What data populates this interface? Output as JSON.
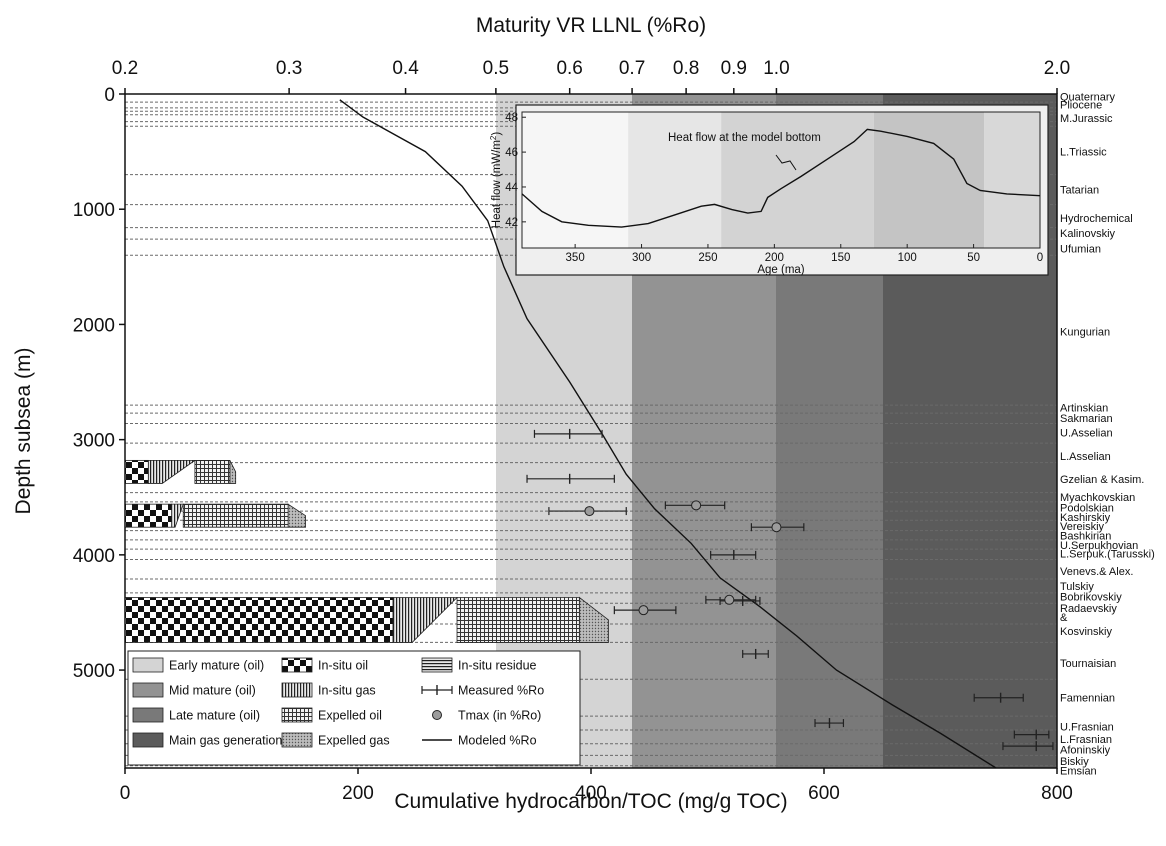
{
  "chart_data": [
    {
      "type": "line",
      "x_axis_bottom": {
        "label": "Cumulative hydrocarbon/TOC (mg/g TOC)",
        "ticks": [
          "0",
          "200",
          "400",
          "600",
          "800"
        ],
        "range": [
          0,
          800
        ]
      },
      "x_axis_top": {
        "label": "Maturity VR LLNL (%Ro)",
        "scale": "log",
        "ticks": [
          "0.2",
          "0.3",
          "0.4",
          "0.5",
          "0.6",
          "0.7",
          "0.8",
          "0.9",
          "1.0",
          "2.0"
        ],
        "range": [
          0.2,
          2.0
        ]
      },
      "y_axis": {
        "label": "Depth subsea (m)",
        "ticks": [
          "0",
          "1000",
          "2000",
          "3000",
          "4000",
          "5000"
        ],
        "range": [
          0,
          5850
        ],
        "reversed": true
      },
      "maturity_zones": [
        {
          "name": "Early mature (oil)",
          "ro_from": 0.5,
          "ro_to": 0.7,
          "color": "#d4d4d4"
        },
        {
          "name": "Mid mature (oil)",
          "ro_from": 0.7,
          "ro_to": 1.0,
          "color": "#939393"
        },
        {
          "name": "Late mature (oil)",
          "ro_from": 1.0,
          "ro_to": 1.3,
          "color": "#797979"
        },
        {
          "name": "Main gas generation",
          "ro_from": 1.3,
          "ro_to": 2.0,
          "color": "#5b5b5b"
        }
      ],
      "formations": [
        {
          "name": "Quaternary",
          "depth": 20
        },
        {
          "name": "Pliocene",
          "depth": 90
        },
        {
          "name": "M.Jurassic",
          "depth": 210
        },
        {
          "name": "L.Triassic",
          "depth": 500
        },
        {
          "name": "Tatarian",
          "depth": 830
        },
        {
          "name": "Hydrochemical",
          "depth": 1075
        },
        {
          "name": "Kalinovskiy",
          "depth": 1205
        },
        {
          "name": "Ufumian",
          "depth": 1340
        },
        {
          "name": "Kungurian",
          "depth": 2060
        },
        {
          "name": "Artinskian",
          "depth": 2720
        },
        {
          "name": "Sakmarian",
          "depth": 2810
        },
        {
          "name": "U.Asselian",
          "depth": 2940
        },
        {
          "name": "L.Asselian",
          "depth": 3140
        },
        {
          "name": "Gzelian & Kasim.",
          "depth": 3340
        },
        {
          "name": "Myachkovskian",
          "depth": 3500
        },
        {
          "name": "Podolskian",
          "depth": 3590
        },
        {
          "name": "Kashirskiy",
          "depth": 3670
        },
        {
          "name": "Vereiskiy",
          "depth": 3750
        },
        {
          "name": "Bashkirian",
          "depth": 3830
        },
        {
          "name": "U.Serpukhovian",
          "depth": 3915
        },
        {
          "name": "L.Serpuk.(Tarusski)",
          "depth": 3990
        },
        {
          "name": "Venevs.& Alex.",
          "depth": 4140
        },
        {
          "name": "Tulskiy",
          "depth": 4270
        },
        {
          "name": "Bobrikovskiy",
          "depth": 4360
        },
        {
          "name": "Radaevskiy",
          "depth": 4460
        },
        {
          "name": "&",
          "depth": 4540
        },
        {
          "name": "Kosvinskiy",
          "depth": 4660
        },
        {
          "name": "Tournaisian",
          "depth": 4940
        },
        {
          "name": "Famennian",
          "depth": 5240
        },
        {
          "name": "U.Frasnian",
          "depth": 5490
        },
        {
          "name": "L.Frasnian",
          "depth": 5600
        },
        {
          "name": "Afoninskiy",
          "depth": 5690
        },
        {
          "name": "Biskiy",
          "depth": 5790
        },
        {
          "name": "Emsian",
          "depth": 5870
        }
      ],
      "series": [
        {
          "name": "Modeled %Ro",
          "points": [
            {
              "ro": 0.34,
              "depth": 50
            },
            {
              "ro": 0.36,
              "depth": 200
            },
            {
              "ro": 0.42,
              "depth": 500
            },
            {
              "ro": 0.46,
              "depth": 800
            },
            {
              "ro": 0.49,
              "depth": 1100
            },
            {
              "ro": 0.51,
              "depth": 1500
            },
            {
              "ro": 0.54,
              "depth": 1950
            },
            {
              "ro": 0.6,
              "depth": 2500
            },
            {
              "ro": 0.65,
              "depth": 2950
            },
            {
              "ro": 0.69,
              "depth": 3300
            },
            {
              "ro": 0.74,
              "depth": 3600
            },
            {
              "ro": 0.81,
              "depth": 3900
            },
            {
              "ro": 0.87,
              "depth": 4200
            },
            {
              "ro": 0.96,
              "depth": 4450
            },
            {
              "ro": 1.05,
              "depth": 4700
            },
            {
              "ro": 1.16,
              "depth": 5000
            },
            {
              "ro": 1.33,
              "depth": 5300
            },
            {
              "ro": 1.5,
              "depth": 5550
            },
            {
              "ro": 1.72,
              "depth": 5850
            }
          ]
        },
        {
          "name": "Measured %Ro",
          "points": [
            {
              "ro": 0.6,
              "depth": 2950,
              "ro_low": 0.55,
              "ro_high": 0.65
            },
            {
              "ro": 0.6,
              "depth": 3340,
              "ro_low": 0.54,
              "ro_high": 0.67
            },
            {
              "ro": 0.9,
              "depth": 4000,
              "ro_low": 0.85,
              "ro_high": 0.95
            },
            {
              "ro": 0.92,
              "depth": 4400,
              "ro_low": 0.87,
              "ro_high": 0.96
            },
            {
              "ro": 0.95,
              "depth": 4860,
              "ro_low": 0.92,
              "ro_high": 0.98
            },
            {
              "ro": 1.74,
              "depth": 5240,
              "ro_low": 1.63,
              "ro_high": 1.84
            },
            {
              "ro": 1.14,
              "depth": 5460,
              "ro_low": 1.1,
              "ro_high": 1.18
            },
            {
              "ro": 1.9,
              "depth": 5560,
              "ro_low": 1.8,
              "ro_high": 1.96
            },
            {
              "ro": 1.9,
              "depth": 5660,
              "ro_low": 1.75,
              "ro_high": 1.98
            }
          ]
        },
        {
          "name": "Tmax (in %Ro)",
          "points": [
            {
              "ro": 0.82,
              "depth": 3570,
              "ro_low": 0.76,
              "ro_high": 0.88
            },
            {
              "ro": 0.63,
              "depth": 3620,
              "ro_low": 0.57,
              "ro_high": 0.69
            },
            {
              "ro": 1.0,
              "depth": 3760,
              "ro_low": 0.94,
              "ro_high": 1.07
            },
            {
              "ro": 0.89,
              "depth": 4390,
              "ro_low": 0.84,
              "ro_high": 0.95
            },
            {
              "ro": 0.72,
              "depth": 4480,
              "ro_low": 0.67,
              "ro_high": 0.78
            }
          ]
        }
      ],
      "hydrocarbon_intervals": [
        {
          "formation": "Gzelian & Kasim.",
          "depth_top": 3180,
          "depth_bottom": 3380,
          "insitu_oil": 20,
          "insitu_gas": 60,
          "expelled_oil": 90,
          "expelled_gas": 95
        },
        {
          "formation": "Kashirskiy - Vereiskiy",
          "depth_top": 3560,
          "depth_bottom": 3760,
          "insitu_oil": 40,
          "insitu_gas": 50,
          "expelled_oil": 140,
          "expelled_gas": 155
        },
        {
          "formation": "Radaevskiy & Kosvinskiy",
          "depth_top": 4370,
          "depth_bottom": 4760,
          "insitu_oil": 230,
          "insitu_gas": 285,
          "expelled_oil": 390,
          "expelled_gas": 415
        }
      ],
      "legend": {
        "position": "bottom-left",
        "entries": [
          {
            "label": "Early mature (oil)",
            "swatch": "zone-early"
          },
          {
            "label": "In-situ oil",
            "swatch": "pattern-checker"
          },
          {
            "label": "In-situ residue",
            "swatch": "pattern-hlines"
          },
          {
            "label": "Mid mature (oil)",
            "swatch": "zone-mid"
          },
          {
            "label": "In-situ gas",
            "swatch": "pattern-vlines"
          },
          {
            "label": "Measured %Ro",
            "swatch": "errorbar-cross"
          },
          {
            "label": "Late mature (oil)",
            "swatch": "zone-late"
          },
          {
            "label": "Expelled oil",
            "swatch": "pattern-grid"
          },
          {
            "label": "Tmax (in %Ro)",
            "swatch": "circle-marker"
          },
          {
            "label": "Main gas generation",
            "swatch": "zone-gas"
          },
          {
            "label": "Expelled gas",
            "swatch": "pattern-dots"
          },
          {
            "label": "Modeled %Ro",
            "swatch": "line"
          }
        ]
      },
      "grid": false
    },
    {
      "type": "line",
      "title": "Heat flow at the model bottom",
      "xlabel": "Age (ma)",
      "ylabel": "Heat flow (mW/m²)",
      "ylabel_text": "Heat flow (mW/m",
      "ylabel_sup": "2",
      "ylabel_close": ")",
      "x_ticks": [
        "350",
        "300",
        "250",
        "200",
        "150",
        "100",
        "50",
        "0"
      ],
      "y_ticks": [
        "42",
        "44",
        "46",
        "48"
      ],
      "xlim": [
        390,
        0
      ],
      "ylim": [
        40.5,
        48.3
      ],
      "series": [
        {
          "points": [
            {
              "age": 390,
              "hf": 43.6
            },
            {
              "age": 375,
              "hf": 42.6
            },
            {
              "age": 360,
              "hf": 42.0
            },
            {
              "age": 340,
              "hf": 41.8
            },
            {
              "age": 315,
              "hf": 41.7
            },
            {
              "age": 295,
              "hf": 41.9
            },
            {
              "age": 275,
              "hf": 42.4
            },
            {
              "age": 255,
              "hf": 42.9
            },
            {
              "age": 245,
              "hf": 43.0
            },
            {
              "age": 232,
              "hf": 42.7
            },
            {
              "age": 220,
              "hf": 42.5
            },
            {
              "age": 210,
              "hf": 42.6
            },
            {
              "age": 205,
              "hf": 43.4
            },
            {
              "age": 195,
              "hf": 43.9
            },
            {
              "age": 180,
              "hf": 44.6
            },
            {
              "age": 160,
              "hf": 45.6
            },
            {
              "age": 140,
              "hf": 46.6
            },
            {
              "age": 130,
              "hf": 47.3
            },
            {
              "age": 120,
              "hf": 47.2
            },
            {
              "age": 100,
              "hf": 46.9
            },
            {
              "age": 80,
              "hf": 46.5
            },
            {
              "age": 65,
              "hf": 45.6
            },
            {
              "age": 55,
              "hf": 44.2
            },
            {
              "age": 45,
              "hf": 43.8
            },
            {
              "age": 25,
              "hf": 43.6
            },
            {
              "age": 0,
              "hf": 43.5
            }
          ]
        }
      ],
      "inset_zones": [
        {
          "age_from": 390,
          "age_to": 310,
          "color": "#f6f6f6"
        },
        {
          "age_from": 310,
          "age_to": 240,
          "color": "#e6e6e6"
        },
        {
          "age_from": 240,
          "age_to": 125,
          "color": "#d3d3d3"
        },
        {
          "age_from": 125,
          "age_to": 42,
          "color": "#c4c4c4"
        },
        {
          "age_from": 42,
          "age_to": 0,
          "color": "#d8d8d8"
        }
      ],
      "legend": {
        "position": "none"
      },
      "grid": false
    }
  ]
}
